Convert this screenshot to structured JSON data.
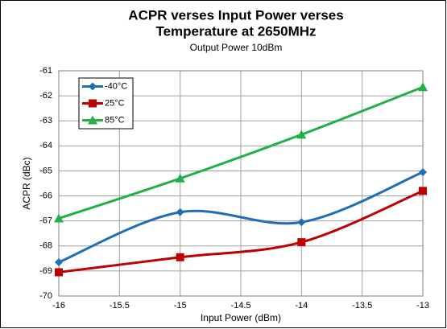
{
  "chart_data": {
    "type": "line",
    "title": [
      "ACPR verses Input Power verses",
      "Temperature at 2650MHz"
    ],
    "subtitle": "Output Power 10dBm",
    "x_label": "Input Power (dBm)",
    "y_label": "ACPR (dBc)",
    "x": [
      -16,
      -15,
      -14,
      -13
    ],
    "series": [
      {
        "name": "-40°C",
        "color": "#1f6fb8",
        "marker": "diamond",
        "values": [
          -68.65,
          -66.65,
          -67.05,
          -65.05
        ]
      },
      {
        "name": "25°C",
        "color": "#c00000",
        "marker": "square",
        "values": [
          -69.05,
          -68.45,
          -67.85,
          -65.8
        ]
      },
      {
        "name": "85°C",
        "color": "#22b04a",
        "marker": "triangle",
        "values": [
          -66.9,
          -65.3,
          -63.55,
          -61.65
        ]
      }
    ],
    "xlim": [
      -16,
      -13
    ],
    "xticks": [
      -16,
      -15.5,
      -15,
      -14.5,
      -14,
      -13.5,
      -13
    ],
    "ylim": [
      -70,
      -61
    ],
    "yticks": [
      -70,
      -69,
      -68,
      -67,
      -66,
      -65,
      -64,
      -63,
      -62,
      -61
    ],
    "grid": true,
    "legend": "upper left",
    "smooth": true
  }
}
